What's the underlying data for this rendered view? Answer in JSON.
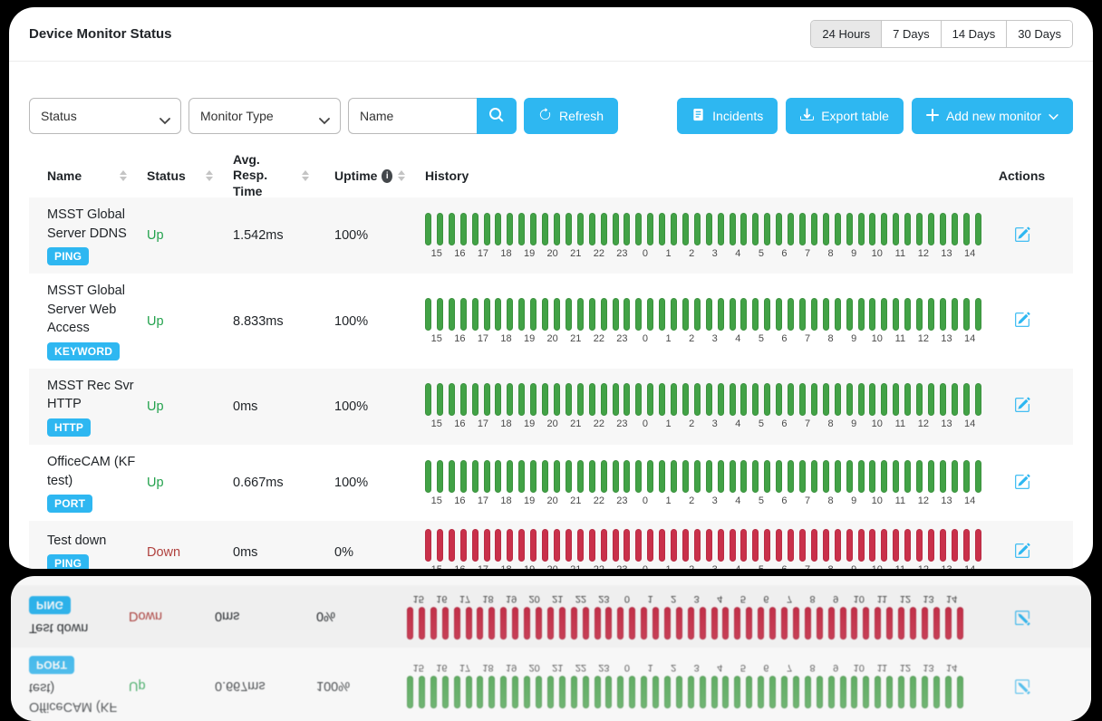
{
  "app": {
    "title": "Device Monitor Status"
  },
  "time_ranges": [
    {
      "label": "24 Hours",
      "active": true
    },
    {
      "label": "7 Days",
      "active": false
    },
    {
      "label": "14 Days",
      "active": false
    },
    {
      "label": "30 Days",
      "active": false
    }
  ],
  "filters": {
    "status": "Status",
    "monitor_type": "Monitor Type",
    "name_placeholder": "Name",
    "refresh": "Refresh"
  },
  "toolbar": {
    "incidents": "Incidents",
    "export": "Export table",
    "add_monitor": "Add new monitor"
  },
  "table": {
    "headers": {
      "name": "Name",
      "status": "Status",
      "resp": "Avg. Resp. Time",
      "uptime": "Uptime",
      "history": "History",
      "actions": "Actions"
    },
    "hours": [
      "15",
      "16",
      "17",
      "18",
      "19",
      "20",
      "21",
      "22",
      "23",
      "0",
      "1",
      "2",
      "3",
      "4",
      "5",
      "6",
      "7",
      "8",
      "9",
      "10",
      "11",
      "12",
      "13",
      "14"
    ],
    "bars_per_hour": 2,
    "monitors": [
      {
        "name": "MSST Global Server DDNS",
        "type": "PING",
        "status": "Up",
        "resp": "1.542ms",
        "uptime": "100%",
        "history": "up"
      },
      {
        "name": "MSST Global Server Web Access",
        "type": "KEYWORD",
        "status": "Up",
        "resp": "8.833ms",
        "uptime": "100%",
        "history": "up"
      },
      {
        "name": "MSST Rec Svr HTTP",
        "type": "HTTP",
        "status": "Up",
        "resp": "0ms",
        "uptime": "100%",
        "history": "up"
      },
      {
        "name": "OfficeCAM (KF test)",
        "type": "PORT",
        "status": "Up",
        "resp": "0.667ms",
        "uptime": "100%",
        "history": "up"
      },
      {
        "name": "Test down",
        "type": "PING",
        "status": "Down",
        "resp": "0ms",
        "uptime": "0%",
        "history": "down"
      }
    ]
  },
  "icons": {
    "search": "search-icon",
    "refresh": "refresh-icon",
    "chevron": "chevron-down-icon",
    "incidents": "document-icon",
    "export": "download-icon",
    "plus": "plus-icon",
    "info": "info-icon",
    "edit": "edit-icon",
    "sort": "sort-icon"
  },
  "colors": {
    "accent_blue": "#2eb7f1",
    "up_green_text": "#23a24d",
    "down_red_text": "#b0413e",
    "bar_green": "#42a246",
    "bar_red": "#c9304a",
    "row_alt_bg": "#f7f7f7",
    "page_bg": "#000000"
  }
}
